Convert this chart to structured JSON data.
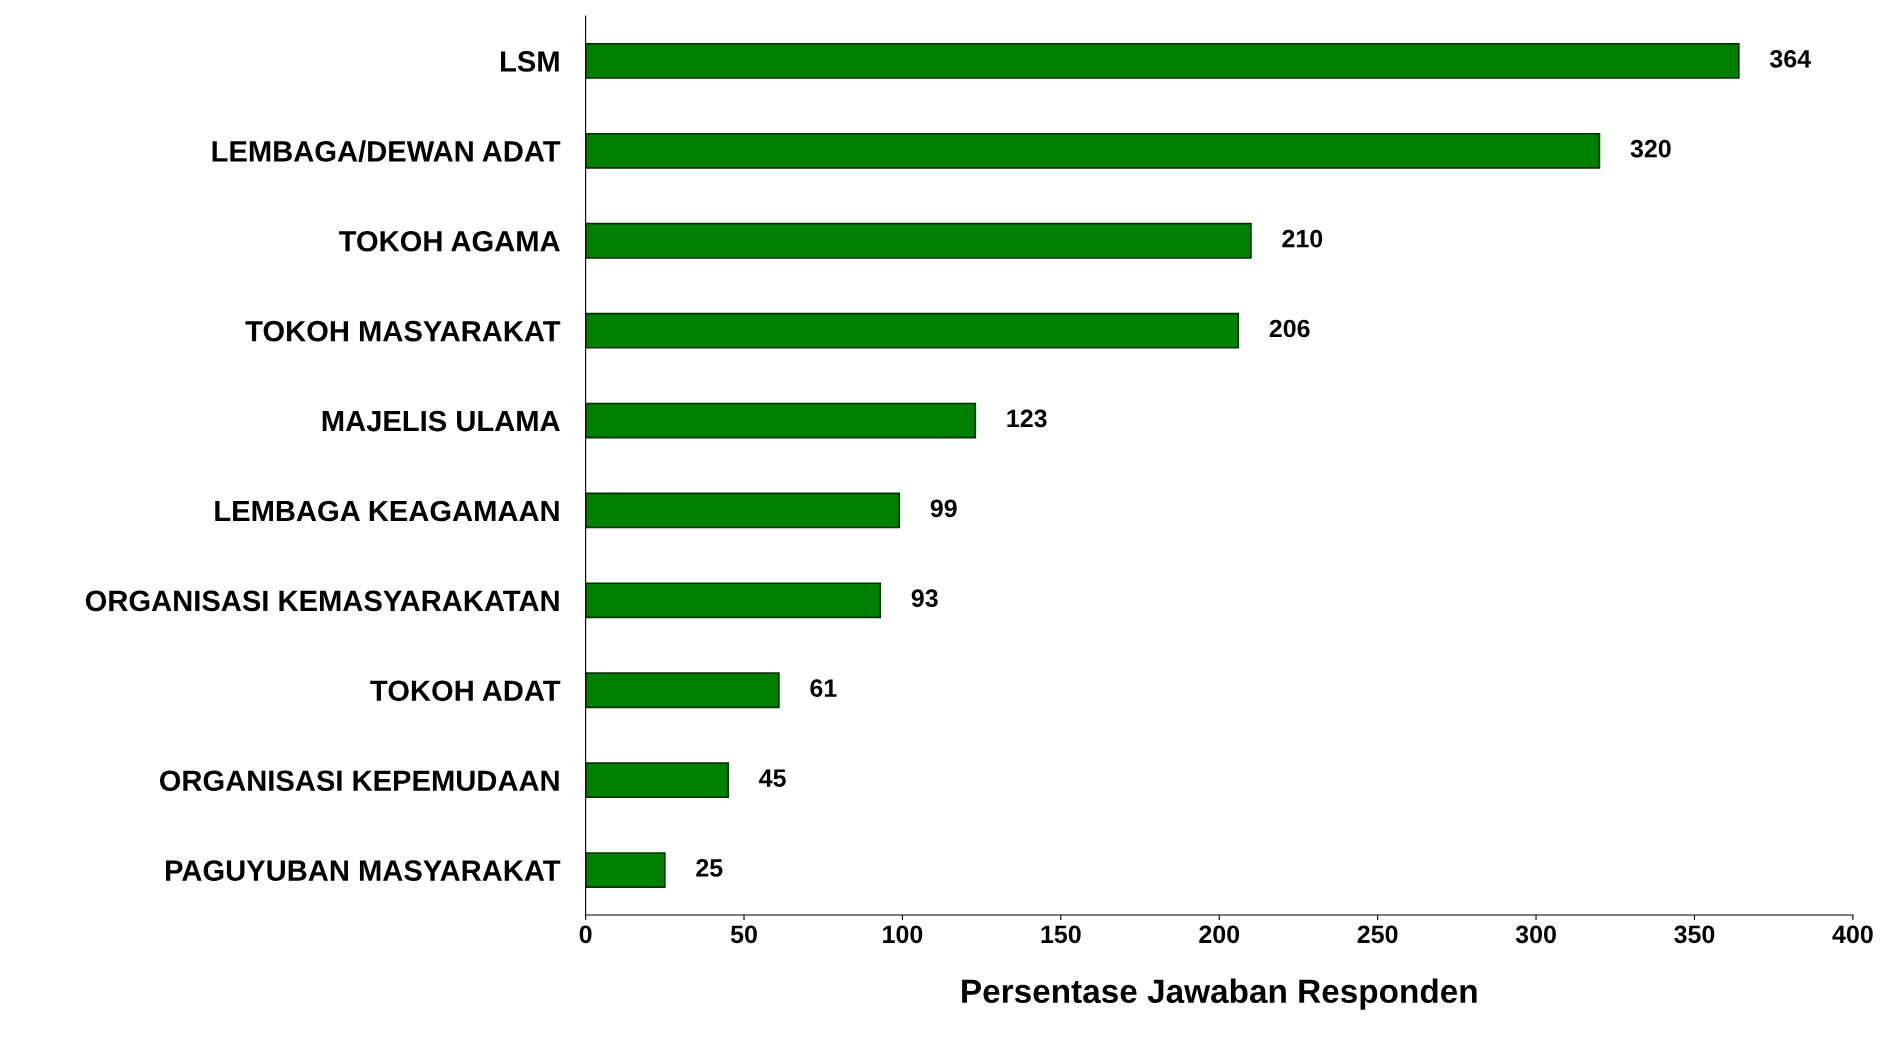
{
  "chart_data": {
    "type": "bar",
    "orientation": "horizontal",
    "xlabel": "Persentase Jawaban Responden",
    "categories": [
      "LSM",
      "LEMBAGA/DEWAN ADAT",
      "TOKOH AGAMA",
      "TOKOH MASYARAKAT",
      "MAJELIS ULAMA",
      "LEMBAGA KEAGAMAAN",
      "ORGANISASI KEMASYARAKATAN",
      "TOKOH ADAT",
      "ORGANISASI KEPEMUDAAN",
      "PAGUYUBAN MASYARAKAT"
    ],
    "values": [
      364,
      320,
      210,
      206,
      123,
      99,
      93,
      61,
      45,
      25
    ],
    "color": "#008000",
    "data_labels": true,
    "grid": false,
    "xlim": [
      0,
      400
    ],
    "xticks": [
      0,
      50,
      100,
      150,
      200,
      250,
      300,
      350,
      400
    ]
  }
}
